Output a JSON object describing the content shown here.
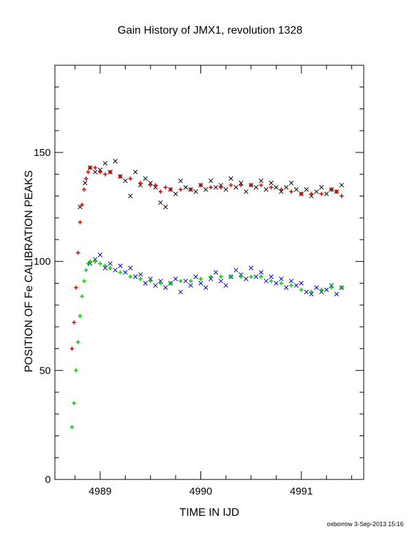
{
  "chart_data": {
    "type": "scatter",
    "title": "Gain History of JMX1, revolution 1328",
    "xlabel": "TIME IN IJD",
    "ylabel": "POSITION OF Fe CALIBRATION PEAKS",
    "xlim": [
      4988.55,
      4991.62
    ],
    "ylim": [
      0,
      190
    ],
    "x_ticks": [
      4989,
      4990,
      4991
    ],
    "x_tick_labels": [
      "4989",
      "4990",
      "4991"
    ],
    "y_ticks": [
      0,
      50,
      100,
      150
    ],
    "y_tick_labels": [
      "0",
      "50",
      "100",
      "150"
    ],
    "grid": false,
    "legend": "none",
    "series": [
      {
        "marker": "x",
        "color": "#000000",
        "x": [
          4988.8,
          4988.85,
          4988.9,
          4988.95,
          4989.0,
          4989.05,
          4989.1,
          4989.15,
          4989.2,
          4989.25,
          4989.3,
          4989.35,
          4989.4,
          4989.45,
          4989.5,
          4989.55,
          4989.6,
          4989.65,
          4989.7,
          4989.75,
          4989.8,
          4989.85,
          4989.9,
          4989.95,
          4990.0,
          4990.05,
          4990.1,
          4990.15,
          4990.2,
          4990.25,
          4990.3,
          4990.35,
          4990.4,
          4990.45,
          4990.5,
          4990.55,
          4990.6,
          4990.65,
          4990.7,
          4990.75,
          4990.8,
          4990.85,
          4990.9,
          4990.95,
          4991.0,
          4991.05,
          4991.1,
          4991.15,
          4991.2,
          4991.25,
          4991.3,
          4991.35,
          4991.4
        ],
        "y": [
          125,
          136,
          143,
          141,
          142,
          145,
          141,
          146,
          139,
          137,
          130,
          141,
          135,
          138,
          136,
          134,
          127,
          125,
          133,
          131,
          137,
          134,
          133,
          132,
          135,
          133,
          137,
          134,
          135,
          133,
          138,
          134,
          136,
          132,
          135,
          134,
          137,
          133,
          136,
          134,
          132,
          134,
          136,
          133,
          131,
          133,
          130,
          132,
          134,
          131,
          133,
          132,
          135
        ]
      },
      {
        "marker": "x",
        "color": "#0000cc",
        "x": [
          4988.9,
          4988.95,
          4989.0,
          4989.05,
          4989.1,
          4989.15,
          4989.2,
          4989.25,
          4989.3,
          4989.35,
          4989.4,
          4989.45,
          4989.5,
          4989.55,
          4989.6,
          4989.65,
          4989.7,
          4989.75,
          4989.8,
          4989.85,
          4989.9,
          4989.95,
          4990.0,
          4990.05,
          4990.1,
          4990.15,
          4990.2,
          4990.25,
          4990.3,
          4990.35,
          4990.4,
          4990.45,
          4990.5,
          4990.55,
          4990.6,
          4990.65,
          4990.7,
          4990.75,
          4990.8,
          4990.85,
          4990.9,
          4990.95,
          4991.0,
          4991.05,
          4991.1,
          4991.15,
          4991.2,
          4991.25,
          4991.3,
          4991.35,
          4991.4
        ],
        "y": [
          99,
          101,
          103,
          97,
          99,
          96,
          98,
          95,
          97,
          93,
          94,
          90,
          92,
          89,
          91,
          88,
          90,
          92,
          86,
          91,
          89,
          93,
          90,
          88,
          92,
          95,
          91,
          89,
          93,
          96,
          94,
          92,
          97,
          93,
          95,
          91,
          93,
          90,
          92,
          88,
          91,
          89,
          90,
          86,
          85,
          88,
          86,
          87,
          89,
          85,
          88
        ]
      },
      {
        "marker": "+",
        "color": "#dd0000",
        "x": [
          4988.72,
          4988.74,
          4988.76,
          4988.78,
          4988.8,
          4988.82,
          4988.84,
          4988.86,
          4988.88,
          4988.9,
          4988.95,
          4989.0,
          4989.05,
          4989.1,
          4989.2,
          4989.3,
          4989.4,
          4989.5,
          4989.55,
          4989.6,
          4989.65,
          4989.7,
          4989.8,
          4989.9,
          4990.0,
          4990.1,
          4990.2,
          4990.3,
          4990.4,
          4990.5,
          4990.6,
          4990.7,
          4990.8,
          4990.9,
          4991.0,
          4991.1,
          4991.2,
          4991.3,
          4991.35,
          4991.4
        ],
        "y": [
          60,
          72,
          88,
          104,
          118,
          126,
          133,
          138,
          141,
          143,
          143,
          141,
          140,
          141,
          139,
          138,
          136,
          135,
          135,
          132,
          134,
          133,
          133,
          133,
          135,
          134,
          134,
          135,
          135,
          135,
          135,
          134,
          133,
          132,
          131,
          131,
          131,
          133,
          132,
          130
        ]
      },
      {
        "marker": "+",
        "color": "#00cc00",
        "x": [
          4988.72,
          4988.74,
          4988.76,
          4988.78,
          4988.8,
          4988.82,
          4988.84,
          4988.86,
          4988.88,
          4988.9,
          4988.95,
          4989.0,
          4989.05,
          4989.1,
          4989.2,
          4989.3,
          4989.4,
          4989.5,
          4989.6,
          4989.7,
          4989.8,
          4989.9,
          4990.0,
          4990.1,
          4990.2,
          4990.3,
          4990.4,
          4990.5,
          4990.6,
          4990.7,
          4990.8,
          4990.9,
          4991.0,
          4991.1,
          4991.2,
          4991.3,
          4991.4
        ],
        "y": [
          24,
          35,
          50,
          63,
          75,
          84,
          91,
          96,
          99,
          100,
          100,
          99,
          98,
          97,
          95,
          93,
          92,
          91,
          90,
          90,
          91,
          91,
          92,
          93,
          93,
          93,
          93,
          93,
          93,
          91,
          90,
          89,
          87,
          86,
          87,
          88,
          88
        ]
      }
    ]
  },
  "footer": "oxborrow 3-Sep-2013 15:16"
}
